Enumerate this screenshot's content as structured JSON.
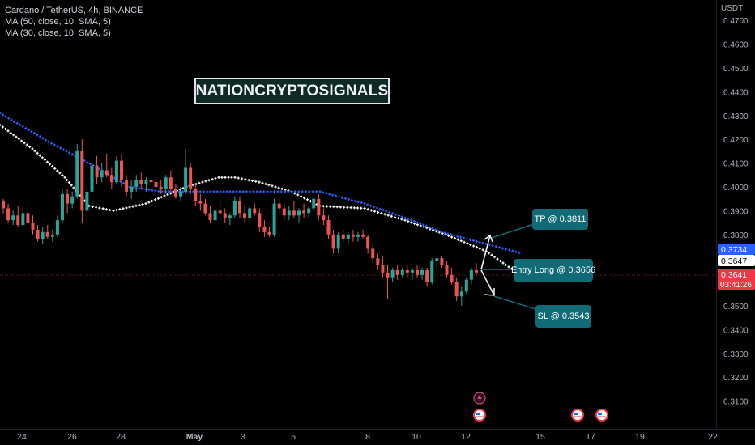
{
  "legend": {
    "symbol": "Cardano / TetherUS, 4h, BINANCE",
    "ma1": "MA (50, close, 10, SMA, 5)",
    "ma2": "MA (30, close, 10, SMA, 5)"
  },
  "watermark": "NATIONCRYPTOSIGNALS",
  "axis": {
    "unit": "USDT",
    "y_ticks": [
      "0.4700",
      "0.4600",
      "0.4500",
      "0.4400",
      "0.4300",
      "0.4200",
      "0.4100",
      "0.4000",
      "0.3900",
      "0.3800",
      "0.3500",
      "0.3400",
      "0.3300",
      "0.3200",
      "0.3100"
    ],
    "x_ticks": [
      "24",
      "26",
      "28",
      "May",
      "3",
      "5",
      "8",
      "10",
      "12",
      "15",
      "17",
      "19",
      "22"
    ]
  },
  "price_labels": {
    "ma_blue": "0.3734",
    "ma_white": "0.3647",
    "last": "0.3641",
    "countdown": "03:41:26"
  },
  "callouts": {
    "tp": "TP @ 0.3811",
    "entry": "Entry Long @ 0.3656",
    "sl": "SL @ 0.3543"
  },
  "colors": {
    "up": "#26a69a",
    "down": "#ef5350",
    "ma_blue": "#2962ff",
    "ma_white": "#ffffff",
    "callout": "#106b77",
    "last_price": "#f23645"
  },
  "event_icons": [
    "lightning-icon",
    "us-flag-icon",
    "us-flag-icon",
    "us-flag-icon"
  ],
  "chart_data": {
    "type": "candlestick",
    "title": "Cardano / TetherUS, 4h, BINANCE",
    "y_range": [
      0.305,
      0.471
    ],
    "current_price": 0.3641,
    "trade_setup": {
      "take_profit": 0.3811,
      "entry_long": 0.3656,
      "stop_loss": 0.3543
    },
    "candles": [
      [
        0.394,
        0.395,
        0.389,
        0.391
      ],
      [
        0.391,
        0.393,
        0.385,
        0.386
      ],
      [
        0.386,
        0.39,
        0.384,
        0.388
      ],
      [
        0.388,
        0.392,
        0.383,
        0.384
      ],
      [
        0.384,
        0.392,
        0.383,
        0.389
      ],
      [
        0.389,
        0.393,
        0.384,
        0.385
      ],
      [
        0.385,
        0.388,
        0.38,
        0.382
      ],
      [
        0.382,
        0.384,
        0.377,
        0.378
      ],
      [
        0.378,
        0.383,
        0.376,
        0.381
      ],
      [
        0.381,
        0.384,
        0.378,
        0.379
      ],
      [
        0.379,
        0.382,
        0.377,
        0.38
      ],
      [
        0.38,
        0.388,
        0.379,
        0.386
      ],
      [
        0.386,
        0.399,
        0.385,
        0.397
      ],
      [
        0.397,
        0.399,
        0.389,
        0.393
      ],
      [
        0.393,
        0.398,
        0.391,
        0.396
      ],
      [
        0.396,
        0.418,
        0.395,
        0.415
      ],
      [
        0.415,
        0.42,
        0.385,
        0.39
      ],
      [
        0.39,
        0.4,
        0.383,
        0.398
      ],
      [
        0.398,
        0.412,
        0.396,
        0.409
      ],
      [
        0.409,
        0.413,
        0.401,
        0.404
      ],
      [
        0.404,
        0.41,
        0.402,
        0.407
      ],
      [
        0.407,
        0.414,
        0.404,
        0.405
      ],
      [
        0.405,
        0.408,
        0.399,
        0.402
      ],
      [
        0.402,
        0.413,
        0.401,
        0.411
      ],
      [
        0.411,
        0.414,
        0.4,
        0.403
      ],
      [
        0.403,
        0.405,
        0.396,
        0.398
      ],
      [
        0.398,
        0.403,
        0.395,
        0.4
      ],
      [
        0.4,
        0.405,
        0.398,
        0.403
      ],
      [
        0.403,
        0.406,
        0.399,
        0.401
      ],
      [
        0.401,
        0.404,
        0.398,
        0.403
      ],
      [
        0.403,
        0.405,
        0.4,
        0.402
      ],
      [
        0.402,
        0.404,
        0.398,
        0.4
      ],
      [
        0.4,
        0.403,
        0.397,
        0.399
      ],
      [
        0.399,
        0.405,
        0.397,
        0.404
      ],
      [
        0.404,
        0.407,
        0.398,
        0.399
      ],
      [
        0.399,
        0.401,
        0.395,
        0.396
      ],
      [
        0.396,
        0.4,
        0.394,
        0.398
      ],
      [
        0.398,
        0.416,
        0.397,
        0.408
      ],
      [
        0.408,
        0.41,
        0.397,
        0.399
      ],
      [
        0.399,
        0.401,
        0.392,
        0.394
      ],
      [
        0.394,
        0.397,
        0.39,
        0.393
      ],
      [
        0.393,
        0.395,
        0.388,
        0.389
      ],
      [
        0.389,
        0.392,
        0.385,
        0.386
      ],
      [
        0.386,
        0.391,
        0.384,
        0.39
      ],
      [
        0.39,
        0.394,
        0.388,
        0.389
      ],
      [
        0.389,
        0.391,
        0.385,
        0.387
      ],
      [
        0.387,
        0.389,
        0.384,
        0.388
      ],
      [
        0.388,
        0.396,
        0.387,
        0.394
      ],
      [
        0.394,
        0.396,
        0.387,
        0.389
      ],
      [
        0.389,
        0.392,
        0.385,
        0.387
      ],
      [
        0.387,
        0.392,
        0.386,
        0.391
      ],
      [
        0.391,
        0.393,
        0.388,
        0.389
      ],
      [
        0.389,
        0.391,
        0.381,
        0.383
      ],
      [
        0.383,
        0.386,
        0.379,
        0.381
      ],
      [
        0.381,
        0.383,
        0.379,
        0.38
      ],
      [
        0.38,
        0.395,
        0.379,
        0.393
      ],
      [
        0.393,
        0.396,
        0.389,
        0.391
      ],
      [
        0.391,
        0.393,
        0.386,
        0.388
      ],
      [
        0.388,
        0.392,
        0.386,
        0.39
      ],
      [
        0.39,
        0.394,
        0.387,
        0.388
      ],
      [
        0.388,
        0.391,
        0.385,
        0.39
      ],
      [
        0.39,
        0.393,
        0.387,
        0.389
      ],
      [
        0.389,
        0.392,
        0.387,
        0.391
      ],
      [
        0.391,
        0.396,
        0.39,
        0.395
      ],
      [
        0.395,
        0.397,
        0.386,
        0.388
      ],
      [
        0.388,
        0.391,
        0.384,
        0.386
      ],
      [
        0.386,
        0.388,
        0.378,
        0.38
      ],
      [
        0.38,
        0.382,
        0.372,
        0.374
      ],
      [
        0.374,
        0.381,
        0.372,
        0.38
      ],
      [
        0.38,
        0.382,
        0.377,
        0.378
      ],
      [
        0.378,
        0.381,
        0.376,
        0.38
      ],
      [
        0.38,
        0.382,
        0.377,
        0.379
      ],
      [
        0.379,
        0.381,
        0.377,
        0.38
      ],
      [
        0.38,
        0.382,
        0.378,
        0.379
      ],
      [
        0.379,
        0.38,
        0.372,
        0.374
      ],
      [
        0.374,
        0.376,
        0.368,
        0.37
      ],
      [
        0.37,
        0.372,
        0.365,
        0.367
      ],
      [
        0.367,
        0.371,
        0.362,
        0.364
      ],
      [
        0.364,
        0.367,
        0.353,
        0.362
      ],
      [
        0.362,
        0.366,
        0.36,
        0.365
      ],
      [
        0.365,
        0.367,
        0.361,
        0.363
      ],
      [
        0.363,
        0.366,
        0.362,
        0.365
      ],
      [
        0.365,
        0.367,
        0.362,
        0.364
      ],
      [
        0.364,
        0.366,
        0.361,
        0.365
      ],
      [
        0.365,
        0.367,
        0.362,
        0.363
      ],
      [
        0.363,
        0.366,
        0.361,
        0.365
      ],
      [
        0.365,
        0.366,
        0.358,
        0.36
      ],
      [
        0.36,
        0.37,
        0.359,
        0.369
      ],
      [
        0.369,
        0.371,
        0.365,
        0.37
      ],
      [
        0.37,
        0.371,
        0.366,
        0.367
      ],
      [
        0.367,
        0.369,
        0.362,
        0.363
      ],
      [
        0.363,
        0.366,
        0.359,
        0.36
      ],
      [
        0.36,
        0.362,
        0.352,
        0.354
      ],
      [
        0.354,
        0.358,
        0.35,
        0.356
      ],
      [
        0.356,
        0.362,
        0.355,
        0.361
      ],
      [
        0.361,
        0.366,
        0.359,
        0.365
      ],
      [
        0.365,
        0.368,
        0.363,
        0.364
      ]
    ],
    "ma_blue_path": [
      [
        0,
        0.431
      ],
      [
        60,
        0.419
      ],
      [
        115,
        0.409
      ],
      [
        160,
        0.4
      ],
      [
        200,
        0.398
      ],
      [
        260,
        0.398
      ],
      [
        300,
        0.398
      ],
      [
        360,
        0.398
      ],
      [
        395,
        0.398
      ],
      [
        450,
        0.393
      ],
      [
        500,
        0.387
      ],
      [
        545,
        0.381
      ],
      [
        600,
        0.376
      ],
      [
        645,
        0.372
      ]
    ],
    "ma_white_path": [
      [
        0,
        0.426
      ],
      [
        40,
        0.416
      ],
      [
        80,
        0.404
      ],
      [
        110,
        0.392
      ],
      [
        140,
        0.39
      ],
      [
        180,
        0.393
      ],
      [
        230,
        0.4
      ],
      [
        270,
        0.404
      ],
      [
        290,
        0.404
      ],
      [
        320,
        0.402
      ],
      [
        360,
        0.398
      ],
      [
        395,
        0.392
      ],
      [
        450,
        0.391
      ],
      [
        500,
        0.386
      ],
      [
        550,
        0.38
      ],
      [
        600,
        0.373
      ],
      [
        635,
        0.3647
      ]
    ]
  }
}
